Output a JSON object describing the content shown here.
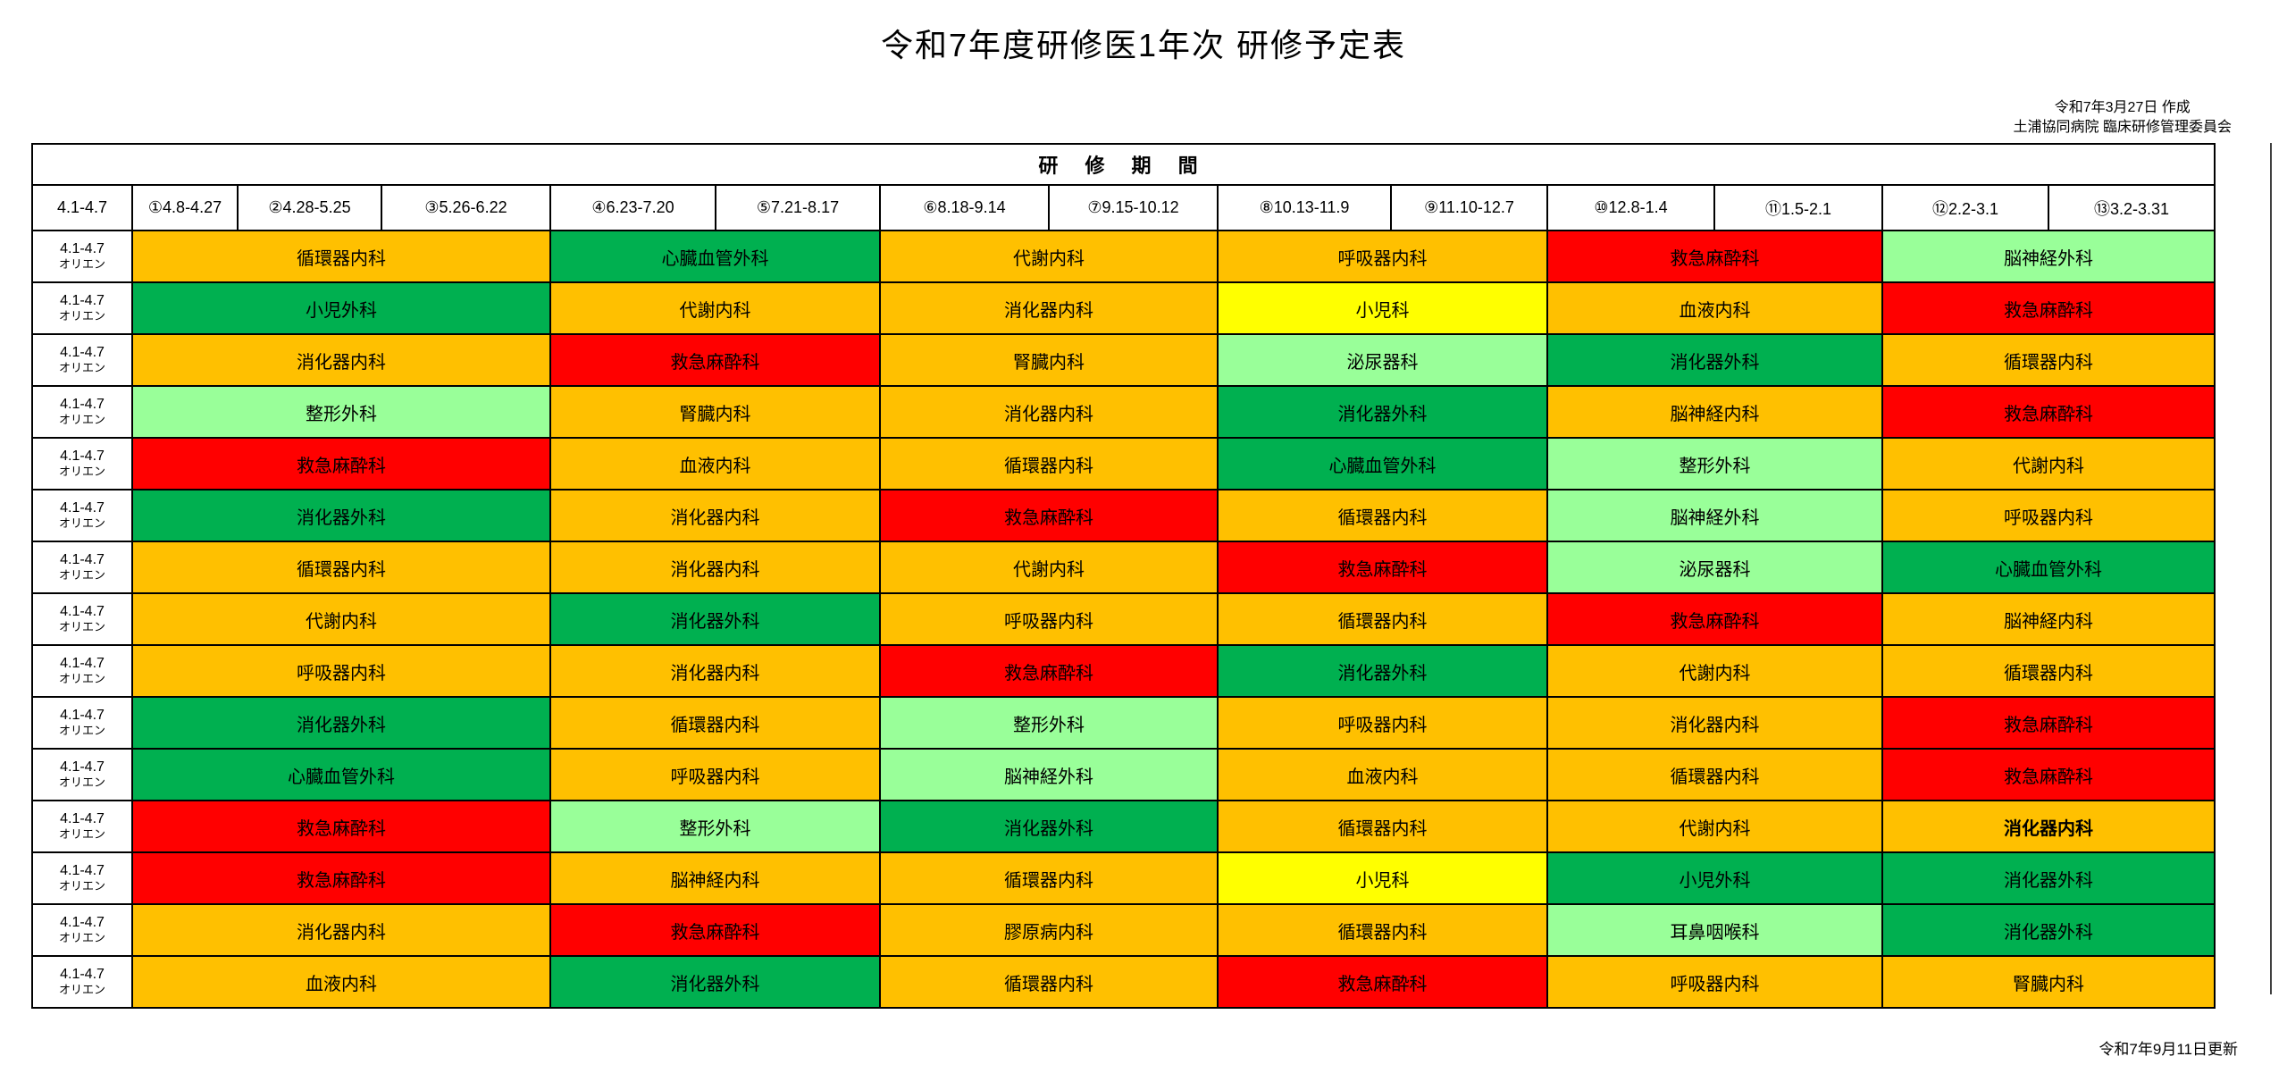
{
  "title": "令和7年度研修医1年次 研修予定表",
  "meta": {
    "created_date": "令和7年3月27日 作成",
    "organization": "土浦協同病院 臨床研修管理委員会",
    "updated": "令和7年9月11日更新"
  },
  "table": {
    "caption": "研 修 期 間",
    "first_col_header": "4.1-4.7",
    "periods": [
      "①4.8-4.27",
      "②4.28-5.25",
      "③5.26-6.22",
      "④6.23-7.20",
      "⑤7.21-8.17",
      "⑥8.18-9.14",
      "⑦9.15-10.12",
      "⑧10.13-11.9",
      "⑨11.10-12.7",
      "⑩12.8-1.4",
      "⑪1.5-2.1",
      "⑫2.2-3.1",
      "⑬3.2-3.31"
    ],
    "row_label_line1": "4.1-4.7",
    "row_label_line2": "オリエン",
    "spans": [
      3,
      2,
      2,
      2,
      2,
      2
    ],
    "colors": {
      "orange": "#FFC000",
      "green": "#00B050",
      "light_green": "#99FF99",
      "yellow": "#FFFF00",
      "red": "#FF0000"
    },
    "rows": [
      {
        "cells": [
          {
            "label": "循環器内科",
            "color": "orange"
          },
          {
            "label": "心臓血管外科",
            "color": "green"
          },
          {
            "label": "代謝内科",
            "color": "orange"
          },
          {
            "label": "呼吸器内科",
            "color": "orange"
          },
          {
            "label": "救急麻酔科",
            "color": "red"
          },
          {
            "label": "脳神経外科",
            "color": "light_green"
          }
        ]
      },
      {
        "cells": [
          {
            "label": "小児外科",
            "color": "green"
          },
          {
            "label": "代謝内科",
            "color": "orange"
          },
          {
            "label": "消化器内科",
            "color": "orange"
          },
          {
            "label": "小児科",
            "color": "yellow"
          },
          {
            "label": "血液内科",
            "color": "orange"
          },
          {
            "label": "救急麻酔科",
            "color": "red"
          }
        ]
      },
      {
        "cells": [
          {
            "label": "消化器内科",
            "color": "orange"
          },
          {
            "label": "救急麻酔科",
            "color": "red"
          },
          {
            "label": "腎臓内科",
            "color": "orange"
          },
          {
            "label": "泌尿器科",
            "color": "light_green"
          },
          {
            "label": "消化器外科",
            "color": "green"
          },
          {
            "label": "循環器内科",
            "color": "orange"
          }
        ]
      },
      {
        "cells": [
          {
            "label": "整形外科",
            "color": "light_green"
          },
          {
            "label": "腎臓内科",
            "color": "orange"
          },
          {
            "label": "消化器内科",
            "color": "orange"
          },
          {
            "label": "消化器外科",
            "color": "green"
          },
          {
            "label": "脳神経内科",
            "color": "orange"
          },
          {
            "label": "救急麻酔科",
            "color": "red"
          }
        ]
      },
      {
        "cells": [
          {
            "label": "救急麻酔科",
            "color": "red"
          },
          {
            "label": "血液内科",
            "color": "orange"
          },
          {
            "label": "循環器内科",
            "color": "orange"
          },
          {
            "label": "心臓血管外科",
            "color": "green"
          },
          {
            "label": "整形外科",
            "color": "light_green"
          },
          {
            "label": "代謝内科",
            "color": "orange"
          }
        ]
      },
      {
        "cells": [
          {
            "label": "消化器外科",
            "color": "green"
          },
          {
            "label": "消化器内科",
            "color": "orange"
          },
          {
            "label": "救急麻酔科",
            "color": "red"
          },
          {
            "label": "循環器内科",
            "color": "orange"
          },
          {
            "label": "脳神経外科",
            "color": "light_green"
          },
          {
            "label": "呼吸器内科",
            "color": "orange"
          }
        ]
      },
      {
        "cells": [
          {
            "label": "循環器内科",
            "color": "orange"
          },
          {
            "label": "消化器内科",
            "color": "orange"
          },
          {
            "label": "代謝内科",
            "color": "orange"
          },
          {
            "label": "救急麻酔科",
            "color": "red"
          },
          {
            "label": "泌尿器科",
            "color": "light_green"
          },
          {
            "label": "心臓血管外科",
            "color": "green"
          }
        ]
      },
      {
        "cells": [
          {
            "label": "代謝内科",
            "color": "orange"
          },
          {
            "label": "消化器外科",
            "color": "green"
          },
          {
            "label": "呼吸器内科",
            "color": "orange"
          },
          {
            "label": "循環器内科",
            "color": "orange"
          },
          {
            "label": "救急麻酔科",
            "color": "red"
          },
          {
            "label": "脳神経内科",
            "color": "orange"
          }
        ]
      },
      {
        "cells": [
          {
            "label": "呼吸器内科",
            "color": "orange"
          },
          {
            "label": "消化器内科",
            "color": "orange"
          },
          {
            "label": "救急麻酔科",
            "color": "red"
          },
          {
            "label": "消化器外科",
            "color": "green"
          },
          {
            "label": "代謝内科",
            "color": "orange"
          },
          {
            "label": "循環器内科",
            "color": "orange"
          }
        ]
      },
      {
        "cells": [
          {
            "label": "消化器外科",
            "color": "green"
          },
          {
            "label": "循環器内科",
            "color": "orange"
          },
          {
            "label": "整形外科",
            "color": "light_green"
          },
          {
            "label": "呼吸器内科",
            "color": "orange"
          },
          {
            "label": "消化器内科",
            "color": "orange"
          },
          {
            "label": "救急麻酔科",
            "color": "red"
          }
        ]
      },
      {
        "cells": [
          {
            "label": "心臓血管外科",
            "color": "green"
          },
          {
            "label": "呼吸器内科",
            "color": "orange"
          },
          {
            "label": "脳神経外科",
            "color": "light_green"
          },
          {
            "label": "血液内科",
            "color": "orange"
          },
          {
            "label": "循環器内科",
            "color": "orange"
          },
          {
            "label": "救急麻酔科",
            "color": "red"
          }
        ]
      },
      {
        "cells": [
          {
            "label": "救急麻酔科",
            "color": "red"
          },
          {
            "label": "整形外科",
            "color": "light_green"
          },
          {
            "label": "消化器外科",
            "color": "green"
          },
          {
            "label": "循環器内科",
            "color": "orange"
          },
          {
            "label": "代謝内科",
            "color": "orange"
          },
          {
            "label": "消化器内科",
            "color": "orange",
            "bold": true
          }
        ]
      },
      {
        "cells": [
          {
            "label": "救急麻酔科",
            "color": "red"
          },
          {
            "label": "脳神経内科",
            "color": "orange"
          },
          {
            "label": "循環器内科",
            "color": "orange"
          },
          {
            "label": "小児科",
            "color": "yellow"
          },
          {
            "label": "小児外科",
            "color": "green"
          },
          {
            "label": "消化器外科",
            "color": "green"
          }
        ]
      },
      {
        "cells": [
          {
            "label": "消化器内科",
            "color": "orange"
          },
          {
            "label": "救急麻酔科",
            "color": "red"
          },
          {
            "label": "膠原病内科",
            "color": "orange"
          },
          {
            "label": "循環器内科",
            "color": "orange"
          },
          {
            "label": "耳鼻咽喉科",
            "color": "light_green"
          },
          {
            "label": "消化器外科",
            "color": "green"
          }
        ]
      },
      {
        "cells": [
          {
            "label": "血液内科",
            "color": "orange"
          },
          {
            "label": "消化器外科",
            "color": "green"
          },
          {
            "label": "循環器内科",
            "color": "orange"
          },
          {
            "label": "救急麻酔科",
            "color": "red"
          },
          {
            "label": "呼吸器内科",
            "color": "orange"
          },
          {
            "label": "腎臓内科",
            "color": "orange"
          }
        ]
      }
    ]
  }
}
